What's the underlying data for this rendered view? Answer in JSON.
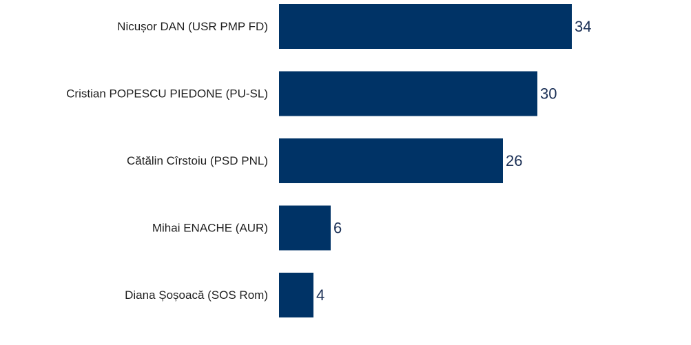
{
  "chart_data": {
    "type": "bar",
    "orientation": "horizontal",
    "categories": [
      "Nicușor DAN (USR PMP FD)",
      "Cristian POPESCU PIEDONE (PU-SL)",
      "Cătălin Cîrstoiu (PSD PNL)",
      "Mihai ENACHE (AUR)",
      "Diana Șoșoacă (SOS Rom)"
    ],
    "values": [
      34,
      30,
      26,
      6,
      4
    ],
    "title": "",
    "xlabel": "",
    "ylabel": "",
    "xlim": [
      0,
      34
    ],
    "grid": false,
    "legend": "none",
    "bar_color": "#003366",
    "label_color": "#1a2f55"
  }
}
